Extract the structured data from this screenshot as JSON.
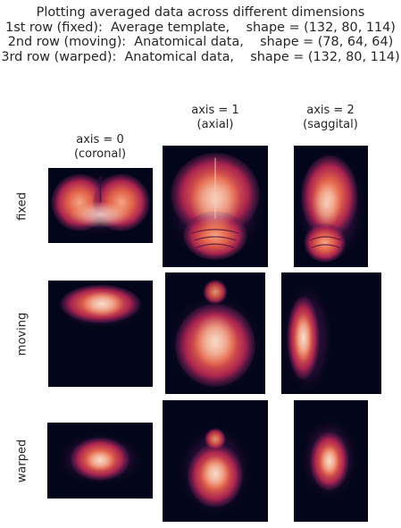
{
  "figure": {
    "title_lines": [
      "Plotting averaged data across different dimensions",
      "",
      "1st row (fixed):  Average template,    shape = (132, 80, 114)",
      "2nd row (moving):  Anatomical data,    shape = (78, 64, 64)",
      "3rd row (warped):  Anatomical data,    shape = (132, 80, 114)"
    ],
    "column_titles": [
      {
        "line1": "axis = 0",
        "line2": "(coronal)"
      },
      {
        "line1": "axis = 1",
        "line2": "(axial)"
      },
      {
        "line1": "axis = 2",
        "line2": "(saggital)"
      }
    ],
    "row_labels": [
      "fixed",
      "moving",
      "warped"
    ]
  },
  "colors": {
    "background": "#03051a",
    "colormap": "rocket",
    "mid": "#c0324c",
    "bright": "#f6cfb8"
  },
  "chart_data": {
    "type": "heatmap",
    "grid": false,
    "colormap": "rocket",
    "rows": [
      "fixed",
      "moving",
      "warped"
    ],
    "columns": [
      "axis = 0 (coronal)",
      "axis = 1 (axial)",
      "axis = 2 (saggital)"
    ],
    "volume_shapes": {
      "fixed": [
        132,
        80,
        114
      ],
      "moving": [
        78,
        64,
        64
      ],
      "warped": [
        132,
        80,
        114
      ]
    },
    "panels": [
      {
        "row": "fixed",
        "column": "axis = 0 (coronal)",
        "view": "coronal"
      },
      {
        "row": "fixed",
        "column": "axis = 1 (axial)",
        "view": "axial"
      },
      {
        "row": "fixed",
        "column": "axis = 2 (saggital)",
        "view": "saggital"
      },
      {
        "row": "moving",
        "column": "axis = 0 (coronal)",
        "view": "coronal"
      },
      {
        "row": "moving",
        "column": "axis = 1 (axial)",
        "view": "axial"
      },
      {
        "row": "moving",
        "column": "axis = 2 (saggital)",
        "view": "saggital"
      },
      {
        "row": "warped",
        "column": "axis = 0 (coronal)",
        "view": "coronal"
      },
      {
        "row": "warped",
        "column": "axis = 1 (axial)",
        "view": "axial"
      },
      {
        "row": "warped",
        "column": "axis = 2 (saggital)",
        "view": "saggital"
      }
    ]
  }
}
